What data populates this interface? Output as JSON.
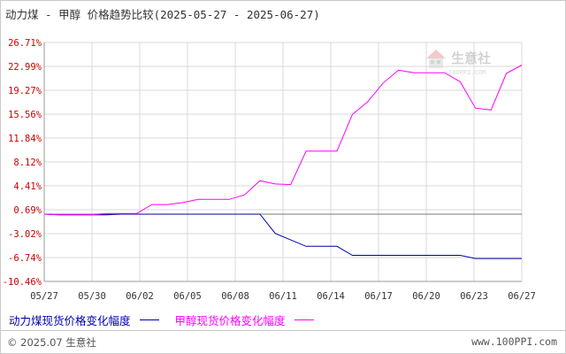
{
  "chart_data": {
    "type": "line",
    "title": "动力煤 - 甲醇 价格趋势比较(2025-05-27 - 2025-06-27)",
    "y_ticks": [
      "26.71%",
      "22.99%",
      "19.27%",
      "15.56%",
      "11.84%",
      "8.12%",
      "4.41%",
      "0.69%",
      "-3.02%",
      "-6.74%",
      "-10.46%"
    ],
    "x_ticks": [
      "05/27",
      "05/30",
      "06/02",
      "06/05",
      "06/08",
      "06/11",
      "06/14",
      "06/17",
      "06/20",
      "06/23",
      "06/27"
    ],
    "ylim": [
      -10.46,
      26.71
    ],
    "x_range_days": [
      0,
      31
    ],
    "grid": true,
    "legend_position": "bottom",
    "series": [
      {
        "name": "动力煤现货价格变化幅度",
        "color": "#0000aa",
        "x": [
          0,
          1,
          2,
          3,
          4,
          5,
          6,
          7,
          8,
          9,
          10,
          11,
          12,
          13,
          14,
          15,
          16,
          17,
          18,
          19,
          20,
          21,
          22,
          23,
          24,
          25,
          26,
          27,
          28,
          29,
          30,
          31
        ],
        "values": [
          0.0,
          -0.1,
          -0.1,
          -0.1,
          -0.1,
          0.0,
          0.0,
          0.0,
          0.0,
          0.0,
          0.0,
          0.0,
          0.0,
          0.0,
          0.0,
          -3.0,
          -4.0,
          -5.0,
          -5.0,
          -5.0,
          -6.4,
          -6.4,
          -6.4,
          -6.4,
          -6.4,
          -6.4,
          -6.4,
          -6.4,
          -6.9,
          -6.9,
          -6.9,
          -6.9
        ]
      },
      {
        "name": "甲醇现货价格变化幅度",
        "color": "#ff00ff",
        "x": [
          0,
          1,
          2,
          3,
          4,
          5,
          6,
          7,
          8,
          9,
          10,
          11,
          12,
          13,
          14,
          15,
          16,
          17,
          18,
          19,
          20,
          21,
          22,
          23,
          24,
          25,
          26,
          27,
          28,
          29,
          30,
          31
        ],
        "values": [
          0.0,
          -0.1,
          -0.1,
          -0.1,
          0.1,
          0.1,
          0.1,
          1.5,
          1.5,
          1.8,
          2.3,
          2.3,
          2.3,
          3.0,
          5.2,
          4.7,
          4.6,
          9.8,
          9.8,
          9.8,
          15.5,
          17.5,
          20.4,
          22.4,
          22.0,
          22.0,
          22.0,
          20.6,
          16.5,
          16.2,
          21.9,
          23.2
        ]
      }
    ]
  },
  "legend": {
    "coal_label": "动力煤现货价格变化幅度",
    "methanol_label": "甲醇现货价格变化幅度"
  },
  "watermark": {
    "name": "生意社",
    "url": "100PPI.COM"
  },
  "footer": {
    "copyright": "© 2025.07 生意社",
    "site": "www.100PPI.com"
  }
}
